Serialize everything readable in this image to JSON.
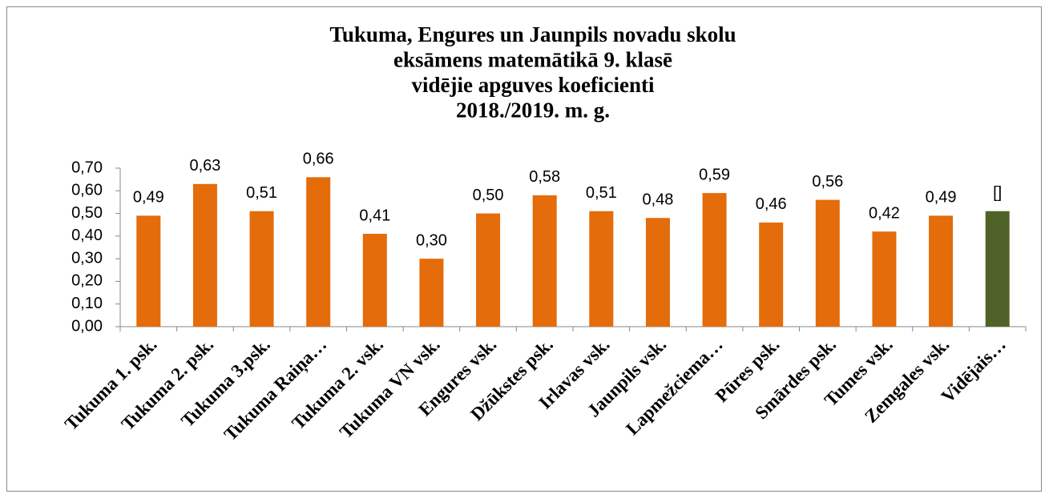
{
  "chart_data": {
    "type": "bar",
    "title": [
      "Tukuma, Engures un Jaunpils novadu skolu",
      "eksāmens matemātikā 9. klasē",
      "vidējie apguves koeficienti",
      "2018./2019. m. g."
    ],
    "categories": [
      "Tukuma 1. psk.",
      "Tukuma 2. psk.",
      "Tukuma 3.psk.",
      "Tukuma Raiņa…",
      "Tukuma 2. vsk.",
      "Tukuma VN vsk.",
      "Engures vsk.",
      "Džūkstes psk.",
      "Irlavas vsk.",
      "Jaunpils vsk.",
      "Lapmežciema…",
      "Pūres psk.",
      "Smārdes psk.",
      "Tumes vsk.",
      "Zemgales vsk.",
      "Vidējais…"
    ],
    "values": [
      0.49,
      0.63,
      0.51,
      0.66,
      0.41,
      0.3,
      0.5,
      0.58,
      0.51,
      0.48,
      0.59,
      0.46,
      0.56,
      0.42,
      0.49,
      0.51
    ],
    "value_labels": [
      "0,49",
      "0,63",
      "0,51",
      "0,66",
      "0,41",
      "0,30",
      "0,50",
      "0,58",
      "0,51",
      "0,48",
      "0,59",
      "0,46",
      "0,56",
      "0,42",
      "0,49",
      "[]"
    ],
    "colors": [
      "#e46c0a",
      "#e46c0a",
      "#e46c0a",
      "#e46c0a",
      "#e46c0a",
      "#e46c0a",
      "#e46c0a",
      "#e46c0a",
      "#e46c0a",
      "#e46c0a",
      "#e46c0a",
      "#e46c0a",
      "#e46c0a",
      "#e46c0a",
      "#e46c0a",
      "#4f6228"
    ],
    "ylim": [
      0,
      0.7
    ],
    "yticks": [
      {
        "value": 0,
        "label": "0,00"
      },
      {
        "value": 0.1,
        "label": "0,10"
      },
      {
        "value": 0.2,
        "label": "0,20"
      },
      {
        "value": 0.3,
        "label": "0,30"
      },
      {
        "value": 0.4,
        "label": "0,40"
      },
      {
        "value": 0.5,
        "label": "0,50"
      },
      {
        "value": 0.6,
        "label": "0,60"
      },
      {
        "value": 0.7,
        "label": "0,70"
      }
    ],
    "grid": false
  }
}
